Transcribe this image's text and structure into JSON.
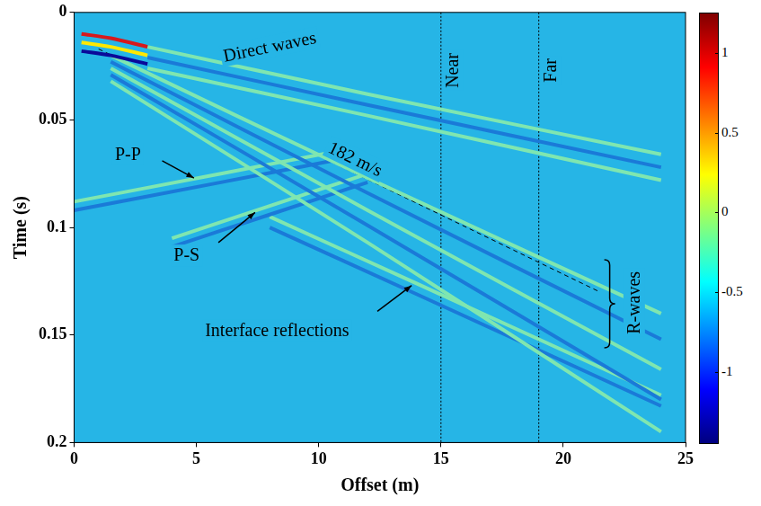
{
  "chart_data": {
    "type": "seismic_gather",
    "x_label": "Offset (m)",
    "y_label": "Time (s)",
    "xlim": [
      0,
      25
    ],
    "xticks": [
      0,
      5,
      10,
      15,
      20,
      25
    ],
    "ylim": [
      0,
      0.2
    ],
    "yticks": [
      0,
      0.05,
      0.1,
      0.15,
      0.2
    ],
    "colorbar": {
      "range": [
        -1.45,
        1.25
      ],
      "ticks": [
        -1,
        -0.5,
        0,
        0.5,
        1
      ]
    },
    "series": [
      {
        "x": [
          0.3,
          1.5,
          3
        ],
        "values": [
          0.01,
          0.012,
          0.016
        ],
        "color": "#d7191c"
      },
      {
        "x": [
          0.3,
          1.5,
          3
        ],
        "values": [
          0.014,
          0.016,
          0.02
        ],
        "color": "#ffe800"
      },
      {
        "x": [
          0.3,
          1.5,
          3
        ],
        "values": [
          0.018,
          0.02,
          0.024
        ],
        "color": "#0a0a9a"
      },
      {
        "x": [
          3,
          12,
          24
        ],
        "values": [
          0.016,
          0.038,
          0.066
        ],
        "color": "#7fe6b0"
      },
      {
        "x": [
          3,
          12,
          24
        ],
        "values": [
          0.021,
          0.043,
          0.072
        ],
        "color": "#1a7ad8"
      },
      {
        "x": [
          3,
          12,
          24
        ],
        "values": [
          0.026,
          0.048,
          0.078
        ],
        "color": "#7fe6b0"
      },
      {
        "x": [
          1.5,
          12,
          24
        ],
        "values": [
          0.02,
          0.077,
          0.14
        ],
        "color": "#7fe6b0"
      },
      {
        "x": [
          1.5,
          12,
          24
        ],
        "values": [
          0.023,
          0.084,
          0.152
        ],
        "color": "#1a7ad8"
      },
      {
        "x": [
          1.5,
          12,
          24
        ],
        "values": [
          0.026,
          0.092,
          0.166
        ],
        "color": "#7fe6b0"
      },
      {
        "x": [
          1.5,
          12,
          24
        ],
        "values": [
          0.029,
          0.099,
          0.18
        ],
        "color": "#1a7ad8"
      },
      {
        "x": [
          1.5,
          12,
          24
        ],
        "values": [
          0.032,
          0.107,
          0.195
        ],
        "color": "#7fe6b0"
      },
      {
        "x": [
          0,
          6,
          11
        ],
        "values": [
          0.088,
          0.075,
          0.064
        ],
        "color": "#7fe6b0"
      },
      {
        "x": [
          0,
          6,
          11
        ],
        "values": [
          0.092,
          0.079,
          0.068
        ],
        "color": "#1a7ad8"
      },
      {
        "x": [
          4,
          8,
          12
        ],
        "values": [
          0.105,
          0.09,
          0.075
        ],
        "color": "#7fe6b0"
      },
      {
        "x": [
          4,
          8,
          12
        ],
        "values": [
          0.109,
          0.094,
          0.079
        ],
        "color": "#1a7ad8"
      },
      {
        "x": [
          8,
          14,
          24
        ],
        "values": [
          0.095,
          0.126,
          0.178
        ],
        "color": "#7fe6b0"
      },
      {
        "x": [
          8,
          14,
          24
        ],
        "values": [
          0.1,
          0.131,
          0.183
        ],
        "color": "#1a7ad8"
      }
    ],
    "reference_line": {
      "label": "182 m/s",
      "x": [
        1,
        21.5
      ],
      "values": [
        0.017,
        0.13
      ],
      "line_style": "dashed",
      "color": "#000000"
    },
    "vertical_lines": [
      {
        "label": "Near",
        "x": 15
      },
      {
        "label": "Far",
        "x": 19
      }
    ],
    "annotations": [
      "Direct waves",
      "P-P",
      "P-S",
      "Interface reflections",
      "R-waves"
    ]
  }
}
